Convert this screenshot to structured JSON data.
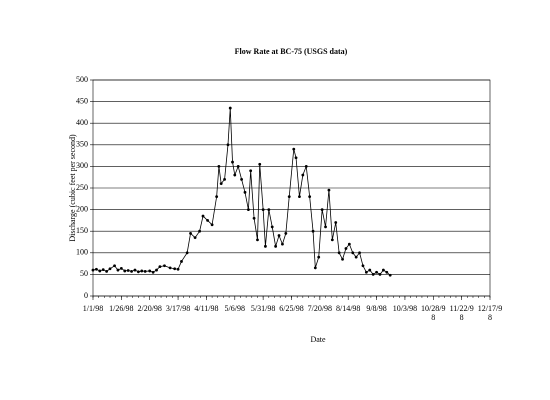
{
  "chart_data": {
    "type": "line",
    "title": "Flow Rate at BC-75 (USGS data)",
    "x_label": "Date",
    "y_label": "Discharge (cubic feet per second)",
    "xlim": [
      "1/1/98",
      "12/17/98"
    ],
    "xticks": [
      "1/1/98",
      "1/26/98",
      "2/20/98",
      "3/17/98",
      "4/11/98",
      "5/6/98",
      "5/31/98",
      "6/25/98",
      "7/20/98",
      "8/14/98",
      "9/8/98",
      "10/3/98",
      "10/28/98",
      "11/22/98",
      "12/17/98"
    ],
    "ylim": [
      0,
      500
    ],
    "yticks": [
      0,
      50,
      100,
      150,
      200,
      250,
      300,
      350,
      400,
      450,
      500
    ],
    "grid": true,
    "series": [
      {
        "name": "Discharge",
        "color": "#000000",
        "x": [
          "1/1/98",
          "1/4/98",
          "1/7/98",
          "1/10/98",
          "1/13/98",
          "1/16/98",
          "1/20/98",
          "1/23/98",
          "1/26/98",
          "1/29/98",
          "2/1/98",
          "2/4/98",
          "2/7/98",
          "2/10/98",
          "2/13/98",
          "2/16/98",
          "2/20/98",
          "2/23/98",
          "2/26/98",
          "3/1/98",
          "3/5/98",
          "3/10/98",
          "3/14/98",
          "3/17/98",
          "3/20/98",
          "3/25/98",
          "3/28/98",
          "4/1/98",
          "4/5/98",
          "4/8/98",
          "4/12/98",
          "4/16/98",
          "4/20/98",
          "4/22/98",
          "4/24/98",
          "4/27/98",
          "4/30/98",
          "5/2/98",
          "5/4/98",
          "5/6/98",
          "5/9/98",
          "5/12/98",
          "5/15/98",
          "5/18/98",
          "5/20/98",
          "5/23/98",
          "5/26/98",
          "5/28/98",
          "5/31/98",
          "6/2/98",
          "6/5/98",
          "6/8/98",
          "6/11/98",
          "6/14/98",
          "6/17/98",
          "6/20/98",
          "6/23/98",
          "6/27/98",
          "6/29/98",
          "7/2/98",
          "7/5/98",
          "7/8/98",
          "7/11/98",
          "7/14/98",
          "7/16/98",
          "7/19/98",
          "7/22/98",
          "7/25/98",
          "7/28/98",
          "7/31/98",
          "8/3/98",
          "8/6/98",
          "8/9/98",
          "8/12/98",
          "8/15/98",
          "8/18/98",
          "8/21/98",
          "8/24/98",
          "8/27/98",
          "8/30/98",
          "9/2/98",
          "9/5/98",
          "9/8/98",
          "9/11/98",
          "9/14/98",
          "9/17/98",
          "9/20/98"
        ],
        "values": [
          60,
          62,
          58,
          61,
          57,
          63,
          70,
          60,
          64,
          58,
          59,
          57,
          60,
          56,
          58,
          57,
          58,
          55,
          60,
          68,
          70,
          65,
          63,
          62,
          80,
          100,
          145,
          135,
          150,
          185,
          175,
          165,
          230,
          300,
          260,
          270,
          350,
          435,
          310,
          280,
          300,
          270,
          240,
          200,
          290,
          180,
          130,
          305,
          200,
          115,
          200,
          160,
          115,
          140,
          120,
          145,
          230,
          340,
          320,
          230,
          280,
          300,
          230,
          150,
          65,
          90,
          200,
          160,
          245,
          130,
          170,
          100,
          85,
          110,
          120,
          100,
          90,
          100,
          70,
          55,
          60,
          50,
          55,
          50,
          60,
          55,
          48
        ]
      }
    ]
  }
}
